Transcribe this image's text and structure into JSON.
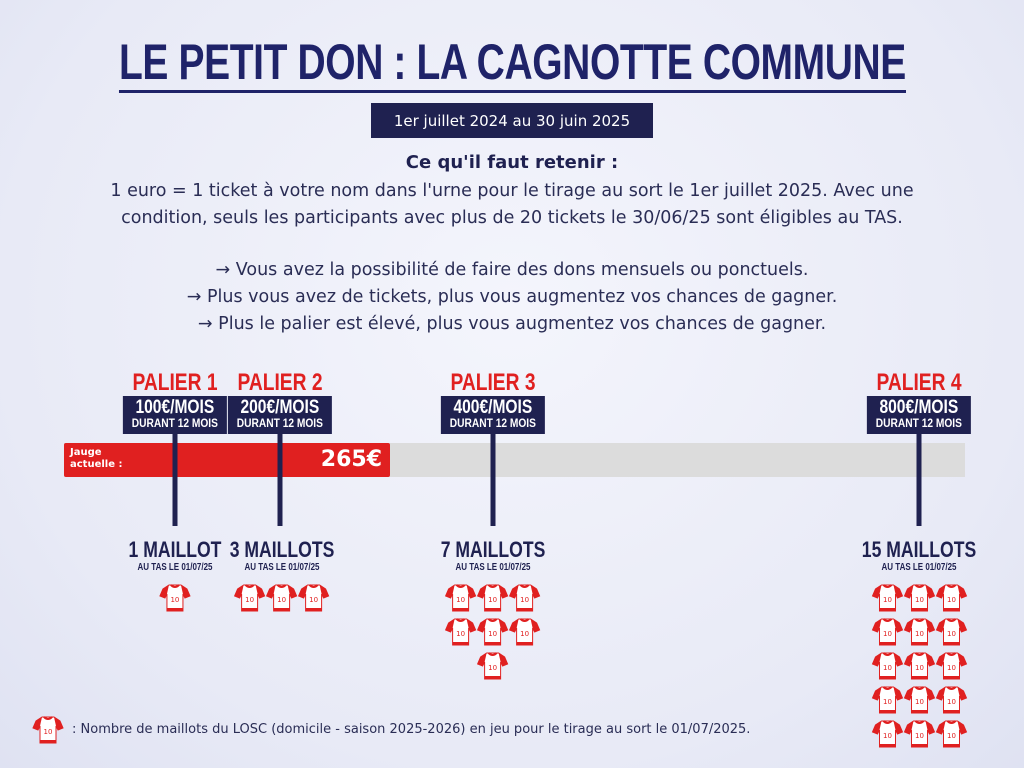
{
  "title": "LE PETIT DON : LA CAGNOTTE COMMUNE",
  "dates": "1er juillet 2024 au 30 juin 2025",
  "retenir_heading": "Ce qu'il faut retenir :",
  "intro": [
    "1 euro = 1 ticket à votre nom dans l'urne pour le tirage au sort le 1er juillet 2025. Avec une",
    "condition, seuls les participants avec plus de 20 tickets le 30/06/25 sont éligibles au TAS."
  ],
  "bullets": [
    "→ Vous avez la possibilité de faire des dons mensuels ou ponctuels.",
    "→ Plus vous avez de tickets, plus vous augmentez vos chances de gagner.",
    "→ Plus le palier est élevé, plus vous augmentez vos chances de gagner."
  ],
  "gauge": {
    "label_1": "Jauge",
    "label_2": "actuelle :",
    "value": "265€",
    "amount": 265
  },
  "paliers": [
    {
      "title": "PALIER 1",
      "amount": "100€/MOIS",
      "duration": "DURANT 12 MOIS",
      "reward": "1 MAILLOT",
      "reward_sub": "AU TAS LE 01/07/25",
      "shirts": 1
    },
    {
      "title": "PALIER 2",
      "amount": "200€/MOIS",
      "duration": "DURANT 12 MOIS",
      "reward": "3 MAILLOTS",
      "reward_sub": "AU TAS LE 01/07/25",
      "shirts": 3
    },
    {
      "title": "PALIER 3",
      "amount": "400€/MOIS",
      "duration": "DURANT 12 MOIS",
      "reward": "7 MAILLOTS",
      "reward_sub": "AU TAS LE 01/07/25",
      "shirts": 7
    },
    {
      "title": "PALIER 4",
      "amount": "800€/MOIS",
      "duration": "DURANT 12 MOIS",
      "reward": "15 MAILLOTS",
      "reward_sub": "AU TAS LE 01/07/25",
      "shirts": 15
    }
  ],
  "shirt_number": "10",
  "legend": ": Nombre de maillots du LOSC (domicile - saison 2025-2026) en jeu pour le tirage au sort le 01/07/2025.",
  "colors": {
    "navy": "#1f2150",
    "red": "#e02020",
    "gauge_bg": "#dcdcdc"
  }
}
